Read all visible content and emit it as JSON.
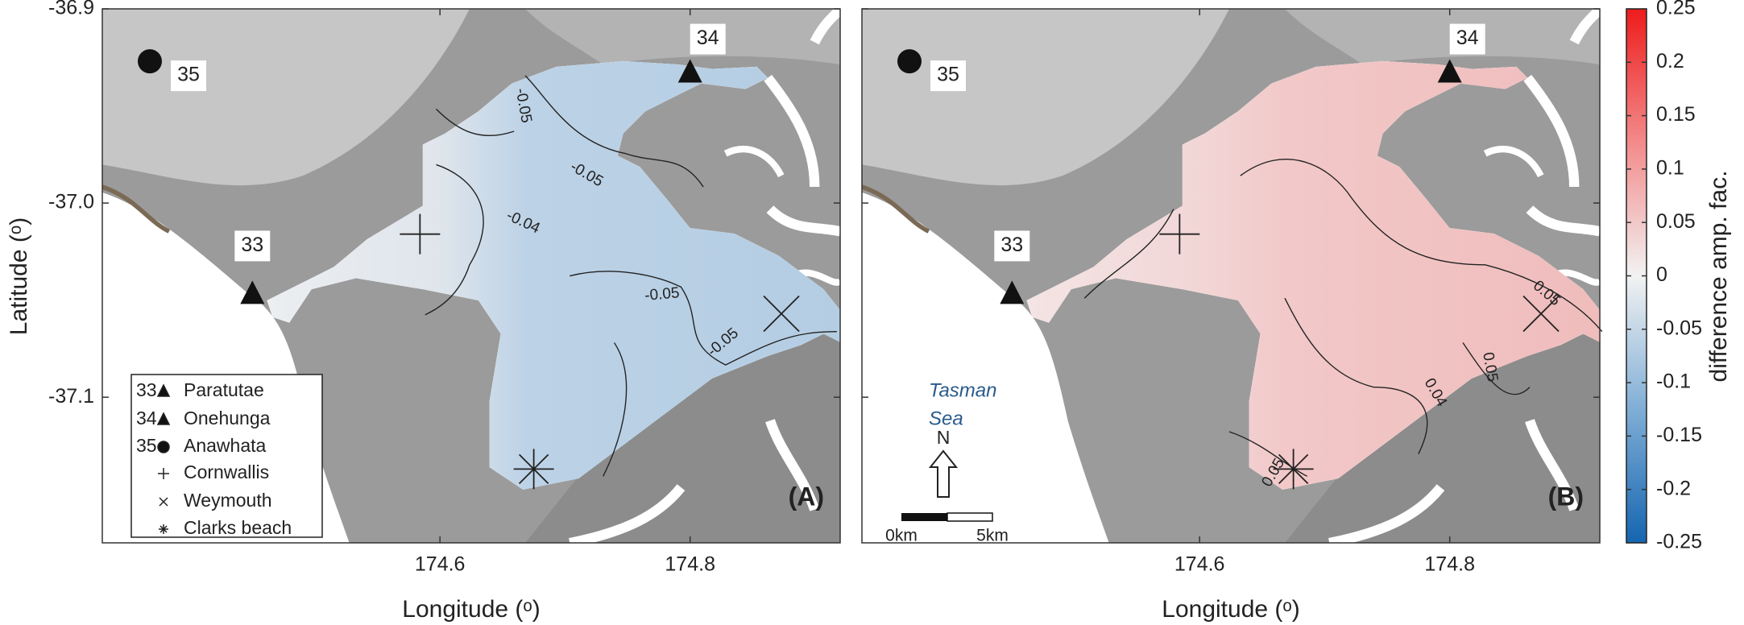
{
  "axes": {
    "xlim": [
      174.33,
      174.92
    ],
    "ylim": [
      -37.175,
      -36.9
    ],
    "xticks": [
      174.6,
      174.8
    ],
    "yticks": [
      -36.9,
      {
        "value": -37,
        "label": "-37.0"
      },
      -37.1
    ]
  },
  "ylabel": "Latitude (ᵒ)",
  "panels": [
    {
      "label": "(A)",
      "xlabel": "Longitude (ᵒ)",
      "contour_labels": [
        "-0.05",
        "-0.05",
        "-0.04",
        "-0.05",
        "-0.05"
      ]
    },
    {
      "label": "(B)",
      "xlabel": "Longitude (ᵒ)",
      "contour_labels": [
        "0.05",
        "0.04",
        "0.05",
        "0.05"
      ]
    }
  ],
  "stations": [
    {
      "id": "33",
      "name": "Paratutae",
      "lon": 174.45,
      "lat": -37.047
    },
    {
      "id": "34",
      "name": "Onehunga",
      "lon": 174.8,
      "lat": -36.933
    },
    {
      "id": "35",
      "name": "Anawhata",
      "lon": 174.368,
      "lat": -36.927
    },
    {
      "name": "Cornwallis",
      "lon": 174.584,
      "lat": -37.016
    },
    {
      "name": "Weymouth",
      "lon": 174.873,
      "lat": -37.057
    },
    {
      "name": "Clarks beach",
      "lon": 174.675,
      "lat": -37.137
    }
  ],
  "annotations": {
    "sea": [
      "Tasman",
      "Sea"
    ],
    "north": "N",
    "scale": [
      "0km",
      "5km"
    ]
  },
  "colorbar": {
    "label": "difference amp. fac.",
    "lim": [
      -0.25,
      0.25
    ],
    "ticks": [
      0.25,
      0.2,
      0.15,
      0.1,
      0.05,
      0,
      -0.05,
      -0.1,
      -0.15,
      -0.2,
      -0.25
    ]
  }
}
